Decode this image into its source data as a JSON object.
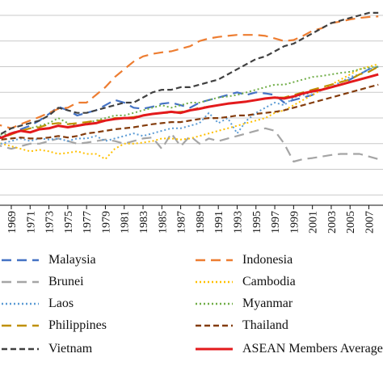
{
  "chart_data": {
    "type": "line",
    "title": "",
    "xlabel": "",
    "ylabel": "",
    "x": [
      1967,
      1968,
      1969,
      1970,
      1971,
      1972,
      1973,
      1974,
      1975,
      1976,
      1977,
      1978,
      1979,
      1980,
      1981,
      1982,
      1983,
      1984,
      1985,
      1986,
      1987,
      1988,
      1989,
      1990,
      1991,
      1992,
      1993,
      1994,
      1995,
      1996,
      1997,
      1998,
      1999,
      2000,
      2001,
      2002,
      2003,
      2004,
      2005,
      2006,
      2007,
      2008
    ],
    "x_tick_labels": [
      "1969",
      "1971",
      "1973",
      "1975",
      "1977",
      "1979",
      "1981",
      "1983",
      "1985",
      "1987",
      "1989",
      "1991",
      "1993",
      "1995",
      "1997",
      "1999",
      "2001",
      "2003",
      "2005",
      "2007"
    ],
    "y_tick_values": [
      0.5,
      1.0,
      1.5,
      2.0,
      2.5,
      3.0,
      3.5,
      4.0
    ],
    "ylim": [
      0.3,
      4.3
    ],
    "xlim": [
      1967.8,
      2008.5
    ],
    "grid": true,
    "legend_position": "bottom",
    "series": [
      {
        "name": "Malaysia",
        "color": "#4472c4",
        "dash": "long-dash",
        "values": [
          1.72,
          1.62,
          1.7,
          1.78,
          1.85,
          1.95,
          2.08,
          2.22,
          2.15,
          2.05,
          2.1,
          2.15,
          2.25,
          2.35,
          2.3,
          2.2,
          2.18,
          2.22,
          2.28,
          2.3,
          2.25,
          2.2,
          2.3,
          2.35,
          2.4,
          2.45,
          2.5,
          2.45,
          2.5,
          2.48,
          2.45,
          2.3,
          2.35,
          2.4,
          2.45,
          2.55,
          2.6,
          2.65,
          2.75,
          2.85,
          2.95,
          3.0
        ]
      },
      {
        "name": "Indonesia",
        "color": "#ed7d31",
        "dash": "long-dash",
        "values": [
          1.9,
          1.85,
          1.8,
          1.88,
          1.95,
          2.02,
          2.1,
          2.18,
          2.2,
          2.3,
          2.3,
          2.45,
          2.6,
          2.8,
          2.95,
          3.1,
          3.2,
          3.25,
          3.28,
          3.3,
          3.35,
          3.4,
          3.5,
          3.55,
          3.58,
          3.6,
          3.62,
          3.62,
          3.62,
          3.6,
          3.55,
          3.5,
          3.52,
          3.6,
          3.7,
          3.75,
          3.85,
          3.88,
          3.92,
          3.95,
          3.97,
          3.98
        ]
      },
      {
        "name": "Brunei",
        "color": "#a5a5a5",
        "dash": "long-dash",
        "values": [
          1.5,
          1.45,
          1.4,
          1.45,
          1.5,
          1.5,
          1.55,
          1.6,
          1.55,
          1.5,
          1.52,
          1.55,
          1.58,
          1.55,
          1.5,
          1.55,
          1.6,
          1.62,
          1.4,
          1.7,
          1.45,
          1.65,
          1.5,
          1.6,
          1.55,
          1.6,
          1.65,
          1.7,
          1.75,
          1.8,
          1.75,
          1.5,
          1.15,
          1.2,
          1.22,
          1.25,
          1.28,
          1.3,
          1.3,
          1.3,
          1.25,
          1.2
        ]
      },
      {
        "name": "Cambodia",
        "color": "#ffc000",
        "dash": "dotted",
        "values": [
          1.55,
          1.5,
          1.45,
          1.4,
          1.35,
          1.38,
          1.35,
          1.3,
          1.32,
          1.35,
          1.3,
          1.3,
          1.2,
          1.4,
          1.5,
          1.5,
          1.52,
          1.55,
          1.6,
          1.6,
          1.58,
          1.6,
          1.65,
          1.7,
          1.75,
          1.8,
          1.85,
          1.9,
          1.95,
          2.0,
          2.1,
          2.15,
          2.25,
          2.35,
          2.45,
          2.55,
          2.65,
          2.75,
          2.85,
          2.95,
          3.0,
          3.05
        ]
      },
      {
        "name": "Laos",
        "color": "#5b9bd5",
        "dash": "dotted",
        "values": [
          1.5,
          1.5,
          1.55,
          1.6,
          1.55,
          1.6,
          1.58,
          1.6,
          1.55,
          1.6,
          1.6,
          1.65,
          1.55,
          1.6,
          1.65,
          1.7,
          1.65,
          1.7,
          1.75,
          1.8,
          1.8,
          1.85,
          1.9,
          2.1,
          1.9,
          2.0,
          1.7,
          1.95,
          2.1,
          2.2,
          2.3,
          2.25,
          2.4,
          2.45,
          2.5,
          2.55,
          2.6,
          2.7,
          2.8,
          2.85,
          2.95,
          3.0
        ]
      },
      {
        "name": "Myanmar",
        "color": "#70ad47",
        "dash": "dotted",
        "values": [
          1.7,
          1.68,
          1.7,
          1.75,
          1.8,
          1.85,
          1.9,
          2.0,
          1.9,
          1.85,
          1.9,
          1.95,
          2.0,
          2.05,
          2.05,
          2.1,
          2.15,
          2.2,
          2.25,
          2.2,
          2.25,
          2.3,
          2.3,
          2.35,
          2.4,
          2.42,
          2.45,
          2.5,
          2.55,
          2.6,
          2.65,
          2.65,
          2.7,
          2.75,
          2.8,
          2.82,
          2.85,
          2.88,
          2.9,
          2.95,
          2.98,
          3.0
        ]
      },
      {
        "name": "Philippines",
        "color": "#bf9000",
        "dash": "long-dash",
        "values": [
          1.65,
          1.62,
          1.68,
          1.75,
          1.8,
          1.82,
          1.88,
          1.9,
          1.88,
          1.9,
          1.92,
          1.95,
          1.95,
          2.0,
          2.0,
          2.02,
          2.05,
          2.08,
          2.1,
          2.1,
          2.12,
          2.15,
          2.2,
          2.22,
          2.25,
          2.28,
          2.3,
          2.32,
          2.35,
          2.38,
          2.4,
          2.4,
          2.45,
          2.5,
          2.55,
          2.6,
          2.65,
          2.7,
          2.75,
          2.85,
          2.9,
          3.0
        ]
      },
      {
        "name": "Thailand",
        "color": "#843c0c",
        "dash": "medium-dash",
        "values": [
          1.6,
          1.58,
          1.6,
          1.62,
          1.6,
          1.6,
          1.62,
          1.65,
          1.62,
          1.65,
          1.7,
          1.72,
          1.75,
          1.78,
          1.8,
          1.82,
          1.85,
          1.88,
          1.9,
          1.92,
          1.92,
          1.95,
          1.98,
          2.0,
          2.0,
          2.02,
          2.05,
          2.05,
          2.08,
          2.1,
          2.12,
          2.15,
          2.2,
          2.25,
          2.3,
          2.35,
          2.4,
          2.45,
          2.5,
          2.55,
          2.6,
          2.65
        ]
      },
      {
        "name": "Vietnam",
        "color": "#404040",
        "dash": "medium-dash",
        "values": [
          1.65,
          1.7,
          1.8,
          1.85,
          1.9,
          1.95,
          2.05,
          2.2,
          2.15,
          2.1,
          2.1,
          2.15,
          2.2,
          2.25,
          2.3,
          2.3,
          2.4,
          2.5,
          2.55,
          2.55,
          2.6,
          2.6,
          2.65,
          2.7,
          2.75,
          2.85,
          2.95,
          3.05,
          3.15,
          3.2,
          3.3,
          3.4,
          3.45,
          3.55,
          3.65,
          3.75,
          3.85,
          3.9,
          3.95,
          4.0,
          4.05,
          4.05
        ]
      },
      {
        "name": "ASEAN Members Average",
        "color": "#e31a1c",
        "dash": "solid",
        "values": [
          1.6,
          1.62,
          1.7,
          1.75,
          1.72,
          1.78,
          1.8,
          1.85,
          1.82,
          1.85,
          1.88,
          1.9,
          1.95,
          1.98,
          2.0,
          2.0,
          2.05,
          2.08,
          2.1,
          2.12,
          2.1,
          2.15,
          2.18,
          2.22,
          2.25,
          2.28,
          2.3,
          2.32,
          2.35,
          2.38,
          2.4,
          2.38,
          2.42,
          2.48,
          2.52,
          2.55,
          2.6,
          2.65,
          2.7,
          2.75,
          2.8,
          2.85
        ]
      }
    ]
  }
}
